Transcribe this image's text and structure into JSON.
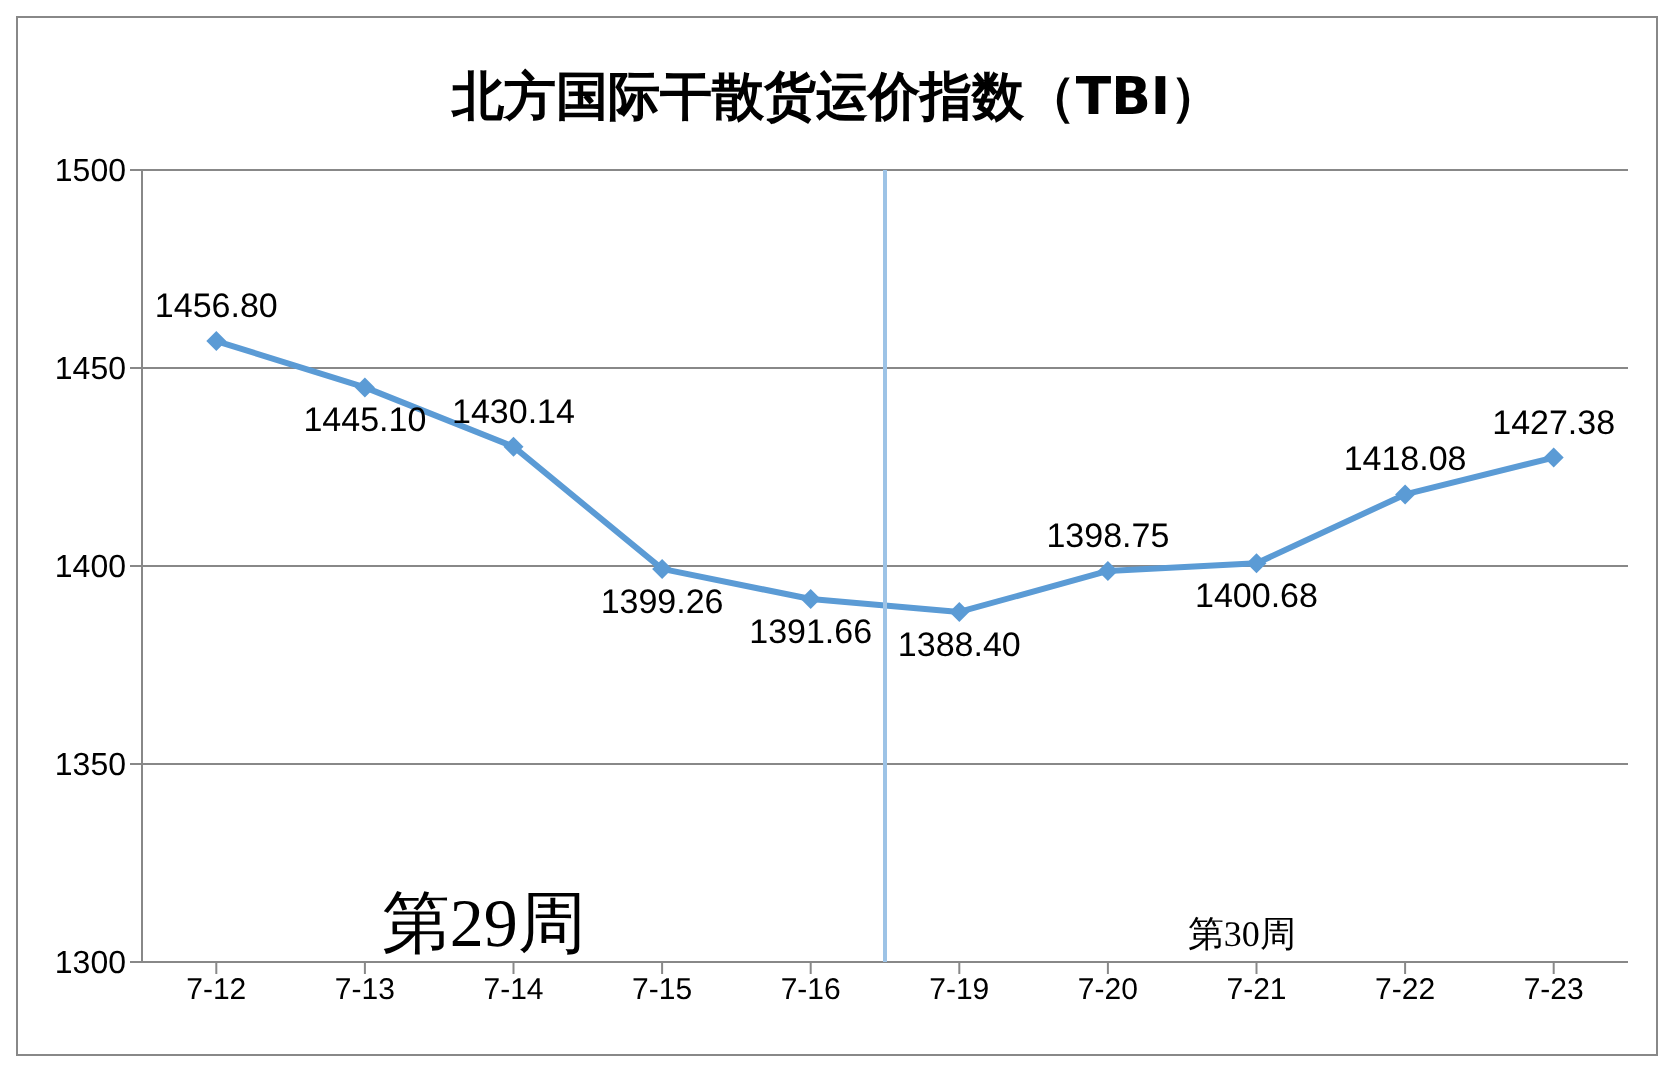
{
  "chart_data": {
    "type": "line",
    "title": "北方国际干散货运价指数（TBI）",
    "categories": [
      "7-12",
      "7-13",
      "7-14",
      "7-15",
      "7-16",
      "7-19",
      "7-20",
      "7-21",
      "7-22",
      "7-23"
    ],
    "series": [
      {
        "color": "#5b9bd5",
        "values": [
          1456.8,
          1445.1,
          1430.14,
          1399.26,
          1391.66,
          1388.4,
          1398.75,
          1400.68,
          1418.08,
          1427.38
        ],
        "value_labels": [
          "1456.80",
          "1445.10",
          "1430.14",
          "1399.26",
          "1391.66",
          "1388.40",
          "1398.75",
          "1400.68",
          "1418.08",
          "1427.38"
        ]
      }
    ],
    "ylim": [
      1300,
      1500
    ],
    "yticks": [
      1300,
      1350,
      1400,
      1450,
      1500
    ],
    "grid": "y",
    "marker": "diamond",
    "line_style": "solid",
    "legend": false,
    "ref_lines": [
      {
        "axis": "x",
        "value": "7-19",
        "color": "#9dc3e6"
      }
    ],
    "annotations": [
      "第29周",
      "第30周"
    ]
  }
}
